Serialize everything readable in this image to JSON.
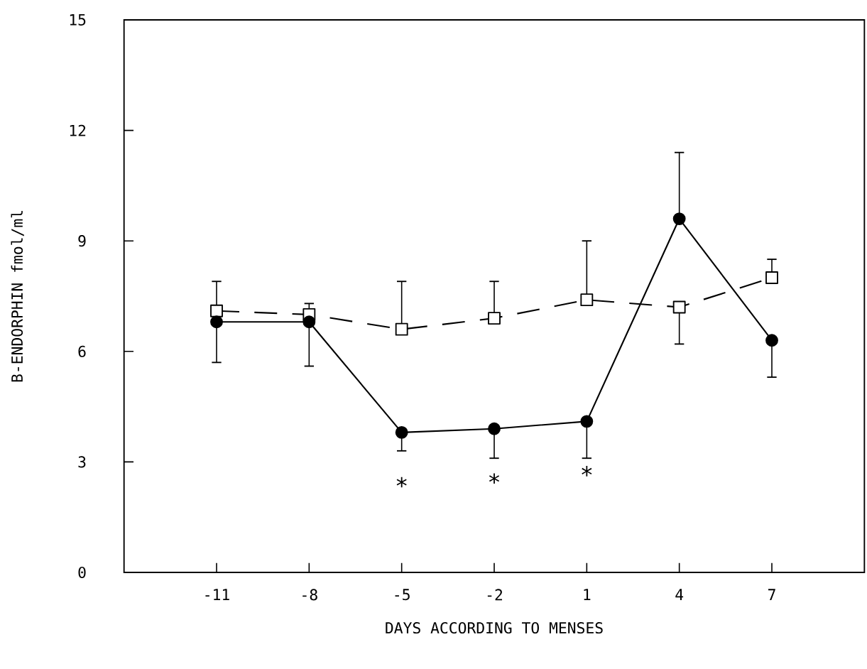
{
  "chart_data": {
    "type": "line",
    "xlabel": "DAYS ACCORDING TO MENSES",
    "ylabel": "B-ENDORPHIN  fmol/ml",
    "x": [
      -11,
      -8,
      -5,
      -2,
      1,
      4,
      7
    ],
    "series": [
      {
        "color": "#000000",
        "marker": "circle",
        "line_style": "solid",
        "values": [
          6.8,
          6.8,
          3.8,
          3.9,
          4.1,
          9.6,
          6.3
        ],
        "errors": [
          [
            5.7,
            6.8
          ],
          [
            5.6,
            6.8
          ],
          [
            3.3,
            3.8
          ],
          [
            3.1,
            3.9
          ],
          [
            3.1,
            4.1
          ],
          [
            9.6,
            11.4
          ],
          [
            5.3,
            6.3
          ]
        ]
      },
      {
        "color": "#000000",
        "marker": "square",
        "line_style": "dashed",
        "values": [
          7.1,
          7.0,
          6.6,
          6.9,
          7.4,
          7.2,
          8.0
        ],
        "errors": [
          [
            7.1,
            7.9
          ],
          [
            7.0,
            7.3
          ],
          [
            6.6,
            7.9
          ],
          [
            6.9,
            7.9
          ],
          [
            7.4,
            9.0
          ],
          [
            6.2,
            7.2
          ],
          [
            8.0,
            8.5
          ]
        ]
      }
    ],
    "xlim": [
      -14,
      10
    ],
    "xticks": [
      -11,
      -8,
      -5,
      -2,
      1,
      4,
      7
    ],
    "ylim": [
      0,
      15
    ],
    "yticks": [
      0,
      3,
      6,
      9,
      12,
      15
    ],
    "annotations": [
      {
        "text": "*",
        "x": -5,
        "y": 3.8
      },
      {
        "text": "*",
        "x": -2,
        "y": 3.9
      },
      {
        "text": "*",
        "x": 1,
        "y": 4.1
      }
    ]
  }
}
